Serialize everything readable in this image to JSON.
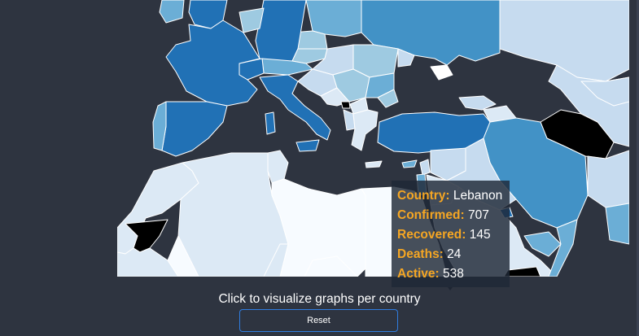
{
  "map": {
    "colors": {
      "background": "#2e3440",
      "very_light": "#f7fbff",
      "light": "#dce9f5",
      "light_mid": "#c6dbef",
      "mid": "#9ecae1",
      "mid_dark": "#6baed6",
      "dark": "#4292c6",
      "darker": "#2171b5",
      "no_data": "#000000"
    }
  },
  "tooltip": {
    "country_key": "Country:",
    "country": "Lebanon",
    "confirmed_key": "Confirmed:",
    "confirmed": "707",
    "recovered_key": "Recovered:",
    "recovered": "145",
    "deaths_key": "Deaths:",
    "deaths": "24",
    "active_key": "Active:",
    "active": "538"
  },
  "hint": "Click to visualize graphs per country",
  "reset_label": "Reset"
}
